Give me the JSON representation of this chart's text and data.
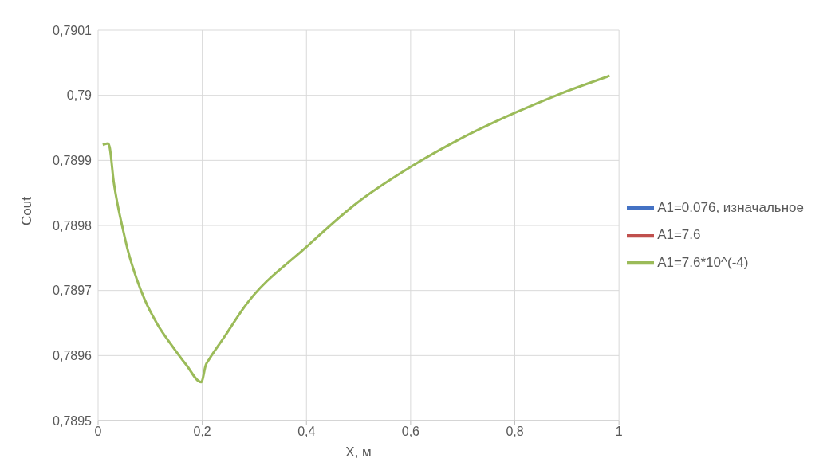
{
  "chart_data": {
    "type": "line",
    "xlabel": "X, м",
    "ylabel": "Cout",
    "x": [
      0.009,
      0.019,
      0.022,
      0.03,
      0.038,
      0.046,
      0.058,
      0.074,
      0.09,
      0.114,
      0.142,
      0.169,
      0.198,
      0.207,
      0.213,
      0.241,
      0.281,
      0.4,
      0.496,
      0.6,
      0.695,
      0.8,
      0.886,
      0.982
    ],
    "series": [
      {
        "name": "A1=0.076, изначальное",
        "color": "#4472c4",
        "values": [
          null,
          null,
          null,
          null,
          null,
          null,
          null,
          null,
          null,
          null,
          null,
          null,
          null,
          null,
          null,
          null,
          null,
          null,
          null,
          null,
          null,
          null,
          null,
          null
        ]
      },
      {
        "name": "A1=7.6",
        "color": "#c0504d",
        "values": [
          null,
          null,
          null,
          null,
          null,
          null,
          null,
          null,
          null,
          null,
          null,
          null,
          null,
          null,
          null,
          null,
          null,
          null,
          null,
          null,
          null,
          null,
          null,
          null
        ]
      },
      {
        "name": "A1=7.6*10^(-4)",
        "color": "#9bbb59",
        "values": [
          0.789924,
          0.789926,
          0.789921,
          0.789867,
          0.78983,
          0.7898,
          0.789759,
          0.789718,
          0.789685,
          0.789648,
          0.789615,
          0.789586,
          0.789559,
          0.789586,
          0.789594,
          0.789627,
          0.789675,
          0.789767,
          0.789834,
          0.78989,
          0.789933,
          0.789973,
          0.790002,
          0.79003
        ]
      }
    ],
    "xlim": [
      0,
      1
    ],
    "xticks": [
      0,
      {
        "value": 0.2,
        "label": "0,2"
      },
      {
        "value": 0.4,
        "label": "0,4"
      },
      {
        "value": 0.6,
        "label": "0,6"
      },
      {
        "value": 0.8,
        "label": "0,8"
      },
      1
    ],
    "ylim": [
      0.7895,
      0.7901
    ],
    "yticks": [
      {
        "value": 0.7895,
        "label": "0,7895"
      },
      {
        "value": 0.7896,
        "label": "0,7896"
      },
      {
        "value": 0.7897,
        "label": "0,7897"
      },
      {
        "value": 0.7898,
        "label": "0,7898"
      },
      {
        "value": 0.7899,
        "label": "0,7899"
      },
      {
        "value": 0.79,
        "label": "0,79"
      },
      {
        "value": 0.7901,
        "label": "0,7901"
      }
    ],
    "grid": true,
    "legend": "right",
    "marker": "none",
    "line_style": "solid"
  }
}
